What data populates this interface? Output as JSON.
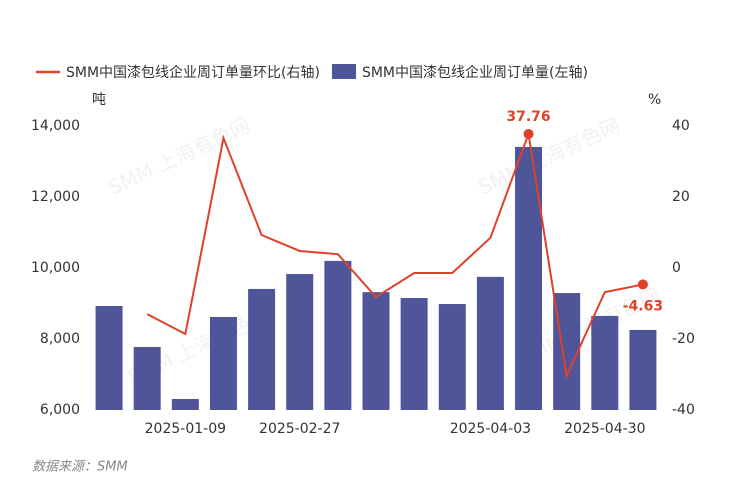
{
  "chart_data": {
    "type": "bar-line",
    "legend": "top",
    "y_unit": "吨",
    "y2_unit": "%",
    "source": "数据来源：SMM",
    "watermark": "SMM 上海有色网",
    "categories": [
      null,
      null,
      "2025-01-09",
      null,
      null,
      "2025-02-27",
      null,
      null,
      null,
      null,
      "2025-04-03",
      null,
      null,
      "2025-04-30",
      null
    ],
    "series": [
      {
        "name": "SMM中国漆包线企业周订单量环比(右轴)",
        "type": "line",
        "axis": "y2",
        "color": "#e0412a",
        "values": [
          null,
          -13,
          -18.6,
          36.6,
          9.3,
          4.8,
          3.9,
          -8.2,
          -1.4,
          -1.4,
          8.5,
          37.76,
          -30.4,
          -6.8,
          -4.63
        ],
        "value_labels": [
          null,
          null,
          null,
          null,
          null,
          null,
          null,
          null,
          null,
          null,
          null,
          "37.76",
          null,
          null,
          "-4.63"
        ]
      },
      {
        "name": "SMM中国漆包线企业周订单量(左轴)",
        "type": "bar",
        "axis": "y",
        "color": "#4e5599",
        "values": [
          8930,
          7775,
          6310,
          8620,
          9410,
          9830,
          10200,
          9320,
          9155,
          8985,
          9750,
          13410,
          9295,
          8650,
          8255
        ]
      }
    ],
    "ylim": [
      6000,
      14000
    ],
    "yticks": [
      {
        "value": 6000,
        "label": "6,000"
      },
      {
        "value": 8000,
        "label": "8,000"
      },
      {
        "value": 10000,
        "label": "10,000"
      },
      {
        "value": 12000,
        "label": "12,000"
      },
      {
        "value": 14000,
        "label": "14,000"
      }
    ],
    "y2lim": [
      -40,
      40
    ],
    "y2ticks": [
      -40,
      -20,
      0,
      20,
      40
    ],
    "grid": false
  }
}
